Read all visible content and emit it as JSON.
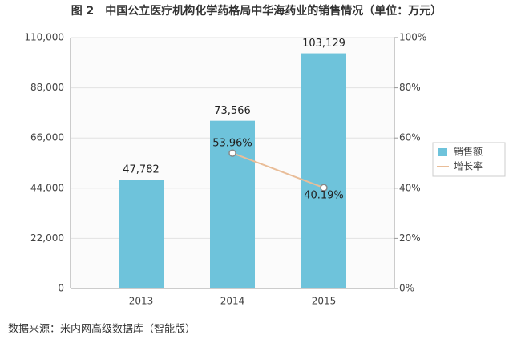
{
  "chart_data": {
    "type": "bar-line",
    "title": "图 2　中国公立医疗机构化学药格局中华海药业的销售情况（单位：万元）",
    "source": "数据来源：米内网高级数据库（智能版）",
    "categories": [
      "2013",
      "2014",
      "2015"
    ],
    "series": [
      {
        "name": "销售额",
        "type": "bar",
        "color": "#6ec3db",
        "values": [
          47782,
          73566,
          103129
        ],
        "value_labels": [
          "47,782",
          "73,566",
          "103,129"
        ]
      },
      {
        "name": "增长率",
        "type": "line",
        "axis": "y2",
        "color": "#e9bd98",
        "values": [
          null,
          53.96,
          40.19
        ],
        "value_labels": [
          null,
          "53.96%",
          "40.19%"
        ]
      }
    ],
    "ylim": [
      0,
      110000
    ],
    "yticks": [
      0,
      {
        "value": 22000,
        "label": "22,000"
      },
      {
        "value": 44000,
        "label": "44,000"
      },
      {
        "value": 66000,
        "label": "66,000"
      },
      {
        "value": 88000,
        "label": "88,000"
      },
      {
        "value": 110000,
        "label": "110,000"
      }
    ],
    "y2lim": [
      0,
      100
    ],
    "y2ticks": [
      {
        "value": 0,
        "label": "0%"
      },
      {
        "value": 20,
        "label": "20%"
      },
      {
        "value": 40,
        "label": "40%"
      },
      {
        "value": 60,
        "label": "60%"
      },
      {
        "value": 80,
        "label": "80%"
      },
      {
        "value": 100,
        "label": "100%"
      }
    ],
    "grid": true,
    "legend": "right"
  }
}
